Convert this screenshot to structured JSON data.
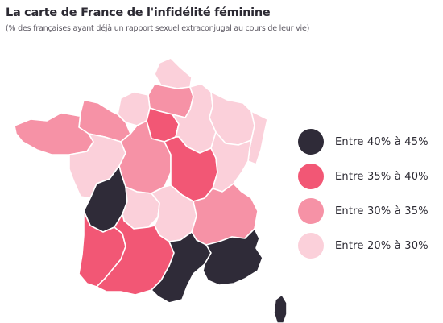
{
  "title": "La carte de France de l'infidélité féminine",
  "subtitle": "(% des françaises ayant déjà un rapport sexuel extraconjugal au cours de leur vie)",
  "colors": {
    "dark": "#2f2b38",
    "red": "#f25775",
    "pink": "#f692a6",
    "light": "#fbd0da"
  },
  "legend": [
    {
      "key": "dark",
      "label": "Entre 40% à 45%",
      "color": "#2f2b38"
    },
    {
      "key": "red",
      "label": "Entre 35% à 40%",
      "color": "#f25775"
    },
    {
      "key": "pink",
      "label": "Entre 30% à 35%",
      "color": "#f692a6"
    },
    {
      "key": "light",
      "label": "Entre 20% à 30%",
      "color": "#fbd0da"
    }
  ],
  "regions": [
    {
      "name": "nord-pas-de-calais",
      "range": "light"
    },
    {
      "name": "picardie",
      "range": "pink"
    },
    {
      "name": "haute-normandie",
      "range": "light"
    },
    {
      "name": "basse-normandie",
      "range": "pink"
    },
    {
      "name": "ile-de-france",
      "range": "red"
    },
    {
      "name": "champagne-ardenne",
      "range": "light"
    },
    {
      "name": "lorraine",
      "range": "light"
    },
    {
      "name": "alsace",
      "range": "light"
    },
    {
      "name": "bretagne",
      "range": "pink"
    },
    {
      "name": "pays-de-la-loire",
      "range": "light"
    },
    {
      "name": "centre",
      "range": "pink"
    },
    {
      "name": "bourgogne",
      "range": "red"
    },
    {
      "name": "franche-comte",
      "range": "light"
    },
    {
      "name": "poitou-charentes",
      "range": "dark"
    },
    {
      "name": "limousin",
      "range": "light"
    },
    {
      "name": "auvergne",
      "range": "light"
    },
    {
      "name": "rhone-alpes",
      "range": "pink"
    },
    {
      "name": "aquitaine",
      "range": "red"
    },
    {
      "name": "midi-pyrenees",
      "range": "red"
    },
    {
      "name": "languedoc-roussillon",
      "range": "dark"
    },
    {
      "name": "provence-alpes-cote-dazur",
      "range": "dark"
    },
    {
      "name": "corse",
      "range": "dark"
    }
  ]
}
